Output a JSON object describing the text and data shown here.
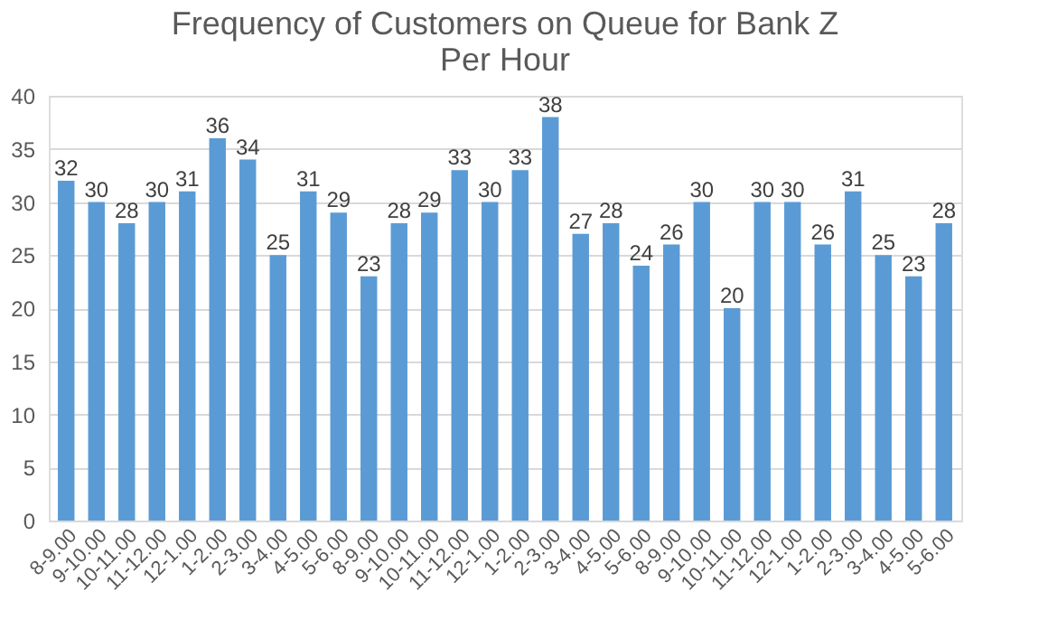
{
  "chart_data": {
    "type": "bar",
    "title": "Frequency of Customers on Queue for Bank Z Per Hour",
    "categories": [
      "8-9.00",
      "9-10.00",
      "10-11.00",
      "11-12.00",
      "12-1.00",
      "1-2.00",
      "2-3.00",
      "3-4.00",
      "4-5.00",
      "5-6.00",
      "8-9.00",
      "9-10.00",
      "10-11.00",
      "11-12.00",
      "12-1.00",
      "1-2.00",
      "2-3.00",
      "3-4.00",
      "4-5.00",
      "5-6.00",
      "8-9.00",
      "9-10.00",
      "10-11.00",
      "11-12.00",
      "12-1.00",
      "1-2.00",
      "2-3.00",
      "3-4.00",
      "4-5.00",
      "5-6.00"
    ],
    "values": [
      32,
      30,
      28,
      30,
      31,
      36,
      34,
      25,
      31,
      29,
      23,
      28,
      29,
      33,
      30,
      33,
      38,
      27,
      28,
      24,
      26,
      30,
      20,
      30,
      30,
      26,
      31,
      25,
      23,
      28
    ],
    "color": "#5b9bd5",
    "ylim": [
      0,
      40
    ],
    "yticks": [
      0,
      5,
      10,
      15,
      20,
      25,
      30,
      35,
      40
    ],
    "grid": "y",
    "data_labels": true
  }
}
